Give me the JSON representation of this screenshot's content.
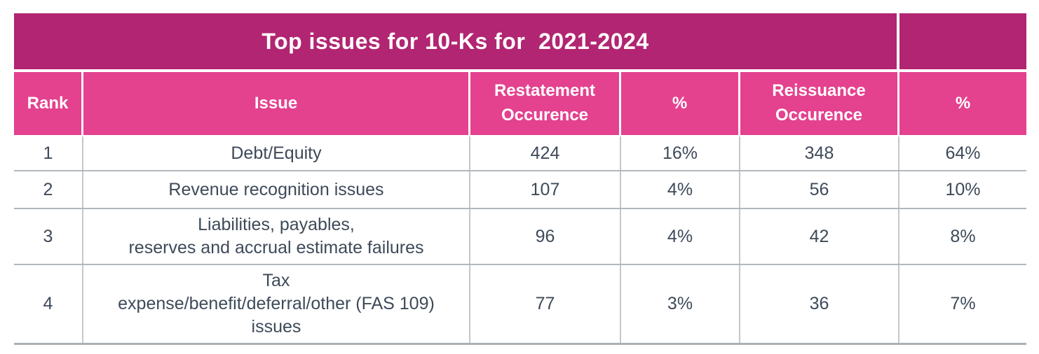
{
  "colors": {
    "title_bg": "#b22572",
    "header_bg": "#e4418f",
    "header_text": "#ffffff",
    "body_text": "#3e4a59",
    "row_divider": "#b2b7bc",
    "column_divider": "#c3c7cb",
    "bottom_border": "#aab0b5"
  },
  "table": {
    "title": "Top issues for 10-Ks for  2021-2024",
    "columns": [
      "Rank",
      "Issue",
      "Restatement Occurence",
      "%",
      "Reissuance Occurence",
      "%"
    ],
    "rows": [
      {
        "rank": "1",
        "issue": "Debt/Equity",
        "restatement_occurence": "424",
        "restatement_pct": "16%",
        "reissuance_occurence": "348",
        "reissuance_pct": "64%"
      },
      {
        "rank": "2",
        "issue": "Revenue recognition issues",
        "restatement_occurence": "107",
        "restatement_pct": "4%",
        "reissuance_occurence": "56",
        "reissuance_pct": "10%"
      },
      {
        "rank": "3",
        "issue": "Liabilities, payables,\nreserves and accrual estimate failures",
        "restatement_occurence": "96",
        "restatement_pct": "4%",
        "reissuance_occurence": "42",
        "reissuance_pct": "8%"
      },
      {
        "rank": "4",
        "issue": "Tax\nexpense/benefit/deferral/other (FAS 109)\nissues",
        "restatement_occurence": "77",
        "restatement_pct": "3%",
        "reissuance_occurence": "36",
        "reissuance_pct": "7%"
      }
    ]
  }
}
